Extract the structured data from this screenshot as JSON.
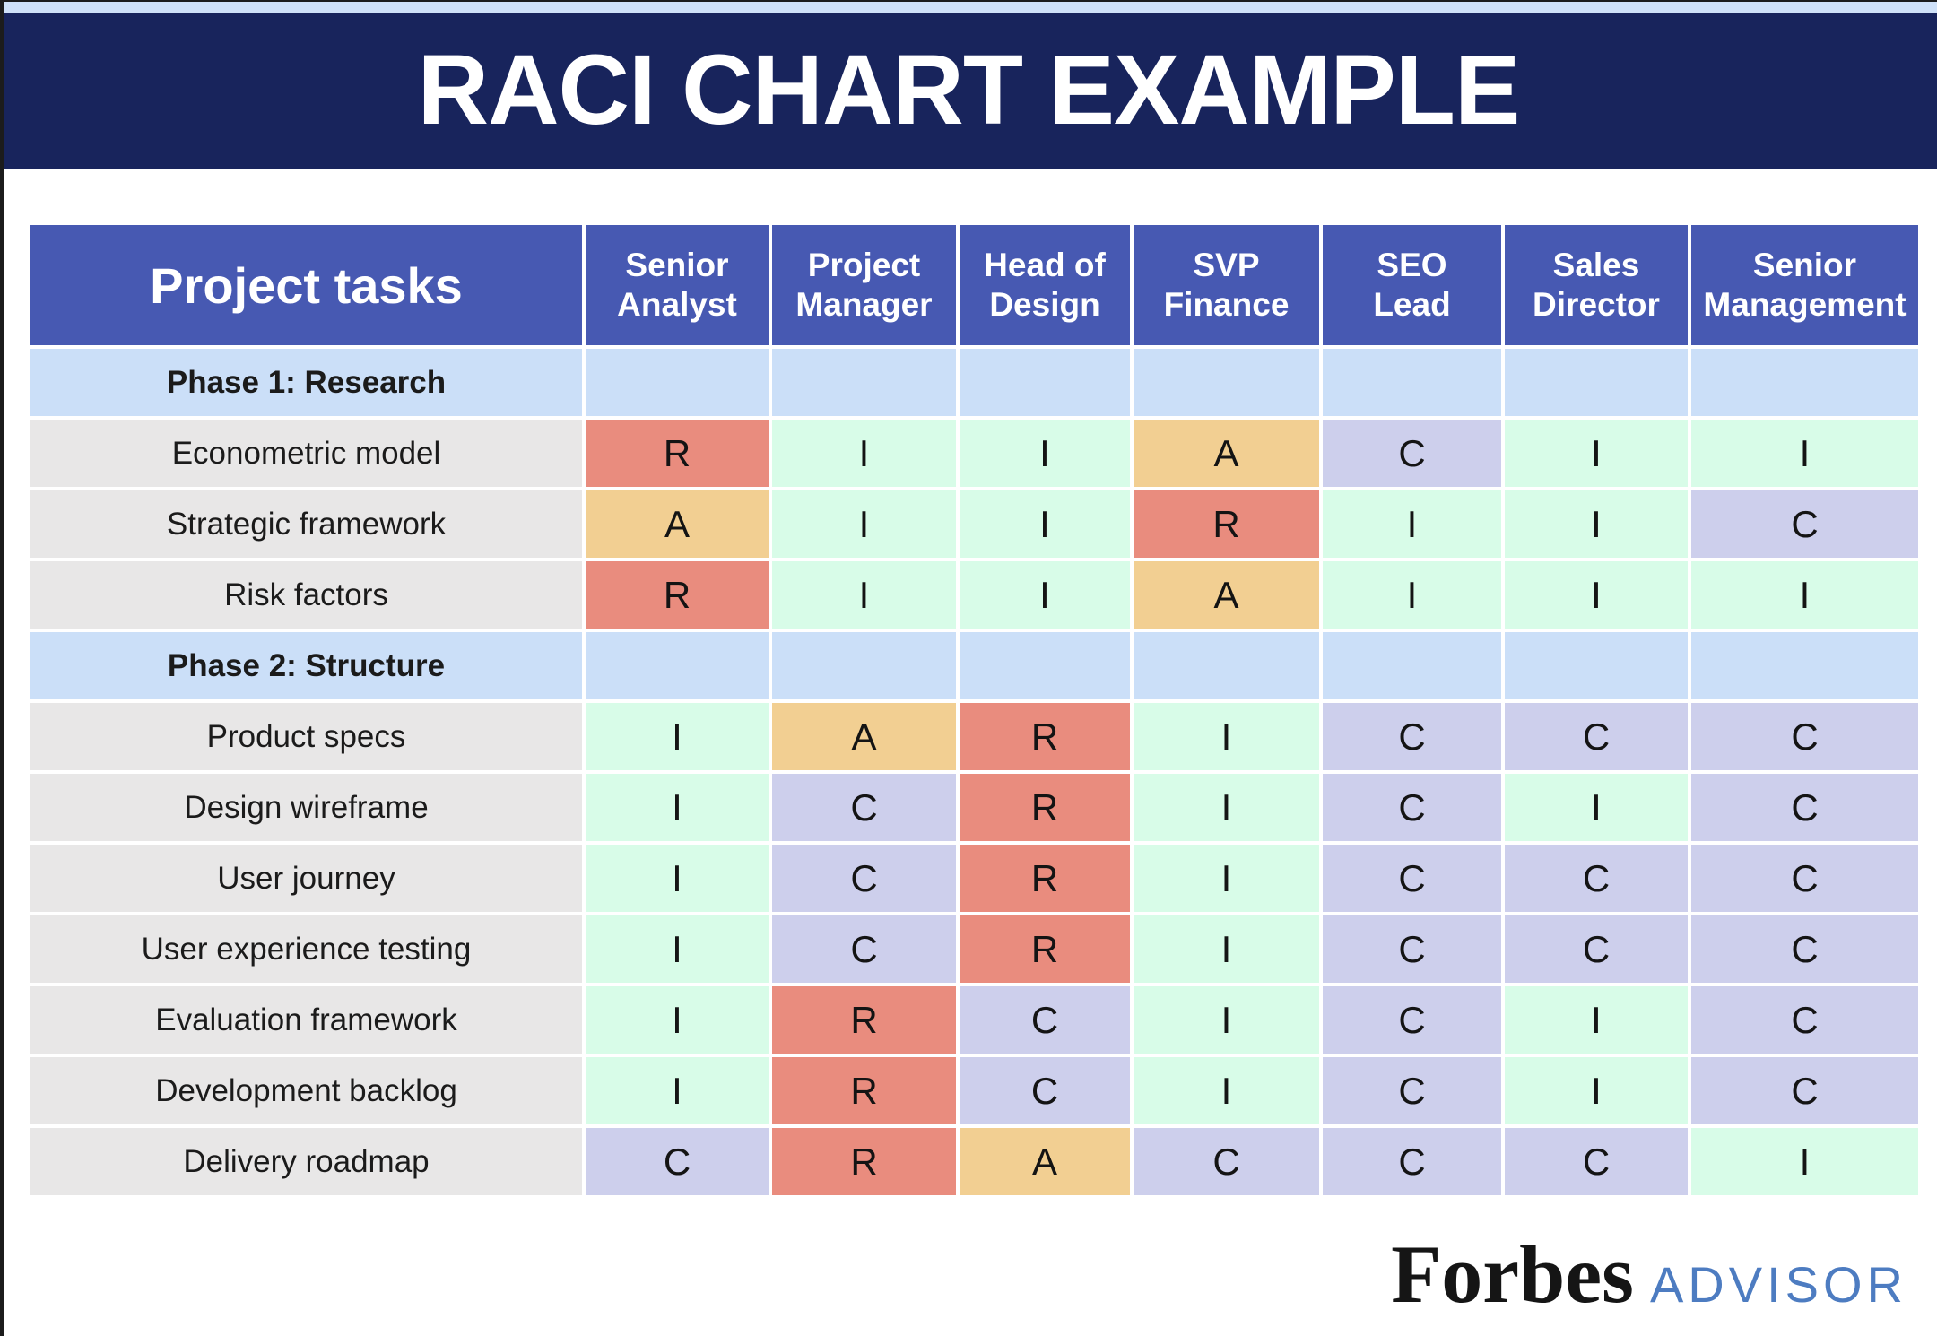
{
  "title": "RACI CHART EXAMPLE",
  "table": {
    "corner_header": "Project tasks",
    "roles": [
      "Senior\nAnalyst",
      "Project\nManager",
      "Head of\nDesign",
      "SVP\nFinance",
      "SEO\nLead",
      "Sales\nDirector",
      "Senior\nManagement"
    ],
    "rows": [
      {
        "type": "phase",
        "label": "Phase 1: Research",
        "cells": [
          "",
          "",
          "",
          "",
          "",
          "",
          ""
        ]
      },
      {
        "type": "task",
        "label": "Econometric model",
        "cells": [
          "R",
          "I",
          "I",
          "A",
          "C",
          "I",
          "I"
        ]
      },
      {
        "type": "task",
        "label": "Strategic framework",
        "cells": [
          "A",
          "I",
          "I",
          "R",
          "I",
          "I",
          "C"
        ]
      },
      {
        "type": "task",
        "label": "Risk factors",
        "cells": [
          "R",
          "I",
          "I",
          "A",
          "I",
          "I",
          "I"
        ]
      },
      {
        "type": "phase",
        "label": "Phase 2: Structure",
        "cells": [
          "",
          "",
          "",
          "",
          "",
          "",
          ""
        ]
      },
      {
        "type": "task",
        "label": "Product specs",
        "cells": [
          "I",
          "A",
          "R",
          "I",
          "C",
          "C",
          "C"
        ]
      },
      {
        "type": "task",
        "label": "Design wireframe",
        "cells": [
          "I",
          "C",
          "R",
          "I",
          "C",
          "I",
          "C"
        ]
      },
      {
        "type": "task",
        "label": "User journey",
        "cells": [
          "I",
          "C",
          "R",
          "I",
          "C",
          "C",
          "C"
        ]
      },
      {
        "type": "task",
        "label": "User experience testing",
        "cells": [
          "I",
          "C",
          "R",
          "I",
          "C",
          "C",
          "C"
        ]
      },
      {
        "type": "task",
        "label": "Evaluation framework",
        "cells": [
          "I",
          "R",
          "C",
          "I",
          "C",
          "I",
          "C"
        ]
      },
      {
        "type": "task",
        "label": "Development backlog",
        "cells": [
          "I",
          "R",
          "C",
          "I",
          "C",
          "I",
          "C"
        ]
      },
      {
        "type": "task",
        "label": "Delivery roadmap",
        "cells": [
          "C",
          "R",
          "A",
          "C",
          "C",
          "C",
          "I"
        ]
      }
    ]
  },
  "legend_colors": {
    "R": "#e98c7e",
    "A": "#f2cf92",
    "C": "#cdcfec",
    "I": "#d8fce8"
  },
  "colors": {
    "banner_bg": "#18245c",
    "strip_bg": "#cfe1f8",
    "header_bg": "#4759b2",
    "phase_row_bg": "#cbdff8",
    "task_row_bg": "#e8e7e7",
    "advisor_blue": "#4d7cc1",
    "forbes_black": "#151515"
  },
  "footer": {
    "brand": "Forbes",
    "suffix": "ADVISOR"
  }
}
